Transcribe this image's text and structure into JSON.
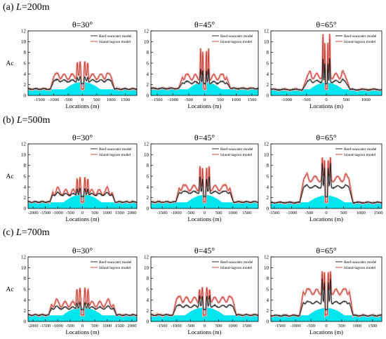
{
  "rows": [
    {
      "prefix": "(a) ",
      "var": "L",
      "value": "=200m"
    },
    {
      "prefix": "(b) ",
      "var": "L",
      "value": "=500m"
    },
    {
      "prefix": "(c) ",
      "var": "L",
      "value": "=700m"
    }
  ],
  "theta_symbol": "θ",
  "chart_data": [
    {
      "type": "line",
      "row": 0,
      "col": 0,
      "title": "θ=30°",
      "xlabel": "Locations (m)",
      "ylabel": "Ac",
      "xlim": [
        -1900,
        1900
      ],
      "ylim": [
        0,
        12
      ],
      "xticks": [
        -1500,
        -1000,
        -500,
        0,
        500,
        1000,
        1500
      ],
      "yticks": [
        0,
        2,
        4,
        6,
        8,
        10,
        12
      ],
      "legend_position": "top-right",
      "series": [
        {
          "name": "Reef-seawater model",
          "color": "#1a1a1a"
        },
        {
          "name": "Island-lagoon model",
          "color": "#c0392b"
        }
      ],
      "params": {
        "halfWidth": 1000,
        "plateauReef": 2.7,
        "plateauIsland": 3.5,
        "peakReef": 3.5,
        "peakIsland": 6.5,
        "ripples": 7,
        "outer": 1.2,
        "domeH": 2.4,
        "domeW": 820
      }
    },
    {
      "type": "line",
      "row": 0,
      "col": 1,
      "title": "θ=45°",
      "xlabel": "Locations (m)",
      "ylabel": "",
      "xlim": [
        -1700,
        1700
      ],
      "ylim": [
        0,
        12
      ],
      "xticks": [
        -1500,
        -1000,
        -500,
        0,
        500,
        1000,
        1500
      ],
      "yticks": [
        0,
        2,
        4,
        6,
        8,
        10,
        12
      ],
      "legend_position": "top-right",
      "series": [
        {
          "name": "Reef-seawater model",
          "color": "#1a1a1a"
        },
        {
          "name": "Island-lagoon model",
          "color": "#c0392b"
        }
      ],
      "params": {
        "halfWidth": 700,
        "plateauReef": 2.4,
        "plateauIsland": 3.4,
        "peakReef": 5.0,
        "peakIsland": 9.0,
        "ripples": 6,
        "outer": 1.3,
        "domeH": 2.4,
        "domeW": 700
      }
    },
    {
      "type": "line",
      "row": 0,
      "col": 2,
      "title": "θ=65°",
      "xlabel": "Locations (m)",
      "ylabel": "",
      "xlim": [
        -1400,
        1400
      ],
      "ylim": [
        0,
        12
      ],
      "xticks": [
        -1000,
        -500,
        0,
        500,
        1000
      ],
      "yticks": [
        0,
        2,
        4,
        6,
        8,
        10,
        12
      ],
      "legend_position": "top-right",
      "series": [
        {
          "name": "Reef-seawater model",
          "color": "#1a1a1a"
        },
        {
          "name": "Island-lagoon model",
          "color": "#c0392b"
        }
      ],
      "params": {
        "halfWidth": 480,
        "plateauReef": 2.6,
        "plateauIsland": 3.6,
        "peakReef": 7.0,
        "peakIsland": 11.5,
        "ripples": 5,
        "outer": 1.1,
        "domeH": 2.3,
        "domeW": 560
      }
    },
    {
      "type": "line",
      "row": 1,
      "col": 0,
      "title": "θ=30°",
      "xlabel": "Locations (m)",
      "ylabel": "Ac",
      "xlim": [
        -2200,
        2200
      ],
      "ylim": [
        0,
        12
      ],
      "xticks": [
        -2000,
        -1500,
        -1000,
        -500,
        0,
        500,
        1000,
        1500,
        2000
      ],
      "yticks": [
        0,
        2,
        4,
        6,
        8,
        10,
        12
      ],
      "legend_position": "top-right",
      "series": [
        {
          "name": "Reef-seawater model",
          "color": "#1a1a1a"
        },
        {
          "name": "Island-lagoon model",
          "color": "#c0392b"
        }
      ],
      "params": {
        "halfWidth": 1200,
        "plateauReef": 2.6,
        "plateauIsland": 3.0,
        "peakReef": 3.8,
        "peakIsland": 6.0,
        "ripples": 8,
        "outer": 1.2,
        "domeH": 2.5,
        "domeW": 1000
      }
    },
    {
      "type": "line",
      "row": 1,
      "col": 1,
      "title": "θ=45°",
      "xlabel": "Locations (m)",
      "ylabel": "",
      "xlim": [
        -1900,
        1900
      ],
      "ylim": [
        0,
        12
      ],
      "xticks": [
        -1500,
        -1000,
        -500,
        0,
        500,
        1000,
        1500
      ],
      "yticks": [
        0,
        2,
        4,
        6,
        8,
        10,
        12
      ],
      "legend_position": "top-right",
      "series": [
        {
          "name": "Reef-seawater model",
          "color": "#1a1a1a"
        },
        {
          "name": "Island-lagoon model",
          "color": "#c0392b"
        }
      ],
      "params": {
        "halfWidth": 900,
        "plateauReef": 3.0,
        "plateauIsland": 3.8,
        "peakReef": 6.0,
        "peakIsland": 8.0,
        "ripples": 6,
        "outer": 1.2,
        "domeH": 2.4,
        "domeW": 820
      }
    },
    {
      "type": "line",
      "row": 1,
      "col": 2,
      "title": "θ=65°",
      "xlabel": "Locations (m)",
      "ylabel": "",
      "xlim": [
        -1600,
        1600
      ],
      "ylim": [
        0,
        12
      ],
      "xticks": [
        -1500,
        -1000,
        -500,
        0,
        500,
        1000,
        1500
      ],
      "yticks": [
        0,
        2,
        4,
        6,
        8,
        10,
        12
      ],
      "legend_position": "top-right",
      "series": [
        {
          "name": "Reef-seawater model",
          "color": "#1a1a1a"
        },
        {
          "name": "Island-lagoon model",
          "color": "#c0392b"
        }
      ],
      "params": {
        "halfWidth": 650,
        "plateauReef": 4.0,
        "plateauIsland": 5.5,
        "peakReef": 8.5,
        "peakIsland": 9.5,
        "ripples": 5,
        "outer": 1.1,
        "domeH": 2.3,
        "domeW": 700
      }
    },
    {
      "type": "line",
      "row": 2,
      "col": 0,
      "title": "θ=30°",
      "xlabel": "Locations (m)",
      "ylabel": "Ac",
      "xlim": [
        -2200,
        2200
      ],
      "ylim": [
        0,
        12
      ],
      "xticks": [
        -2000,
        -1500,
        -1000,
        -500,
        0,
        500,
        1000,
        1500,
        2000
      ],
      "yticks": [
        0,
        2,
        4,
        6,
        8,
        10,
        12
      ],
      "legend_position": "top-right",
      "series": [
        {
          "name": "Reef-seawater model",
          "color": "#1a1a1a"
        },
        {
          "name": "Island-lagoon model",
          "color": "#c0392b"
        }
      ],
      "params": {
        "halfWidth": 1250,
        "plateauReef": 2.5,
        "plateauIsland": 3.2,
        "peakReef": 3.6,
        "peakIsland": 6.5,
        "ripples": 8,
        "outer": 1.2,
        "domeH": 2.5,
        "domeW": 1050
      }
    },
    {
      "type": "line",
      "row": 2,
      "col": 1,
      "title": "θ=45°",
      "xlabel": "Locations (m)",
      "ylabel": "",
      "xlim": [
        -1900,
        1900
      ],
      "ylim": [
        0,
        12
      ],
      "xticks": [
        -1500,
        -1000,
        -500,
        0,
        500,
        1000,
        1500
      ],
      "yticks": [
        0,
        2,
        4,
        6,
        8,
        10,
        12
      ],
      "legend_position": "top-right",
      "series": [
        {
          "name": "Reef-seawater model",
          "color": "#1a1a1a"
        },
        {
          "name": "Island-lagoon model",
          "color": "#c0392b"
        }
      ],
      "params": {
        "halfWidth": 1000,
        "plateauReef": 2.8,
        "plateauIsland": 4.0,
        "peakReef": 5.0,
        "peakIsland": 6.3,
        "ripples": 7,
        "outer": 1.2,
        "domeH": 2.5,
        "domeW": 900
      }
    },
    {
      "type": "line",
      "row": 2,
      "col": 2,
      "title": "θ=65°",
      "xlabel": "Locations (m)",
      "ylabel": "",
      "xlim": [
        -1800,
        1800
      ],
      "ylim": [
        0,
        12
      ],
      "xticks": [
        -1500,
        -1000,
        -500,
        0,
        500,
        1000,
        1500
      ],
      "yticks": [
        0,
        2,
        4,
        6,
        8,
        10,
        12
      ],
      "legend_position": "top-right",
      "series": [
        {
          "name": "Reef-seawater model",
          "color": "#1a1a1a"
        },
        {
          "name": "Island-lagoon model",
          "color": "#c0392b"
        }
      ],
      "params": {
        "halfWidth": 750,
        "plateauReef": 3.5,
        "plateauIsland": 5.5,
        "peakReef": 8.0,
        "peakIsland": 9.5,
        "ripples": 6,
        "outer": 1.1,
        "domeH": 2.4,
        "domeW": 780
      }
    }
  ],
  "colors": {
    "reef": "#1a1a1a",
    "island": "#c0392b",
    "island_band": "#f4b6b6",
    "reef_band": "#bfbfbf",
    "water": "#00e5ee"
  }
}
